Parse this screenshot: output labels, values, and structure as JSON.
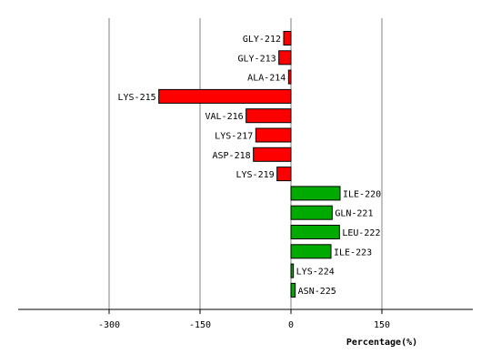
{
  "chart_data": {
    "type": "bar",
    "orientation": "horizontal",
    "title": "",
    "xlabel": "Percentage(%)",
    "ylabel": "",
    "xlim": [
      -450,
      300
    ],
    "xticks": [
      -300,
      -150,
      0,
      150
    ],
    "grid": true,
    "legend": "none",
    "colors": {
      "negative": "#ff0000",
      "positive": "#00aa00",
      "grid": "#808080",
      "outline": "#000000"
    },
    "categories": [
      "GLY-212",
      "GLY-213",
      "ALA-214",
      "LYS-215",
      "VAL-216",
      "LYS-217",
      "ASP-218",
      "LYS-219",
      "ILE-220",
      "GLN-221",
      "LEU-222",
      "ILE-223",
      "LYS-224",
      "ASN-225"
    ],
    "values": [
      -12,
      -20,
      -4,
      -218,
      -74,
      -58,
      -62,
      -23,
      81,
      68,
      80,
      66,
      4,
      7
    ]
  }
}
